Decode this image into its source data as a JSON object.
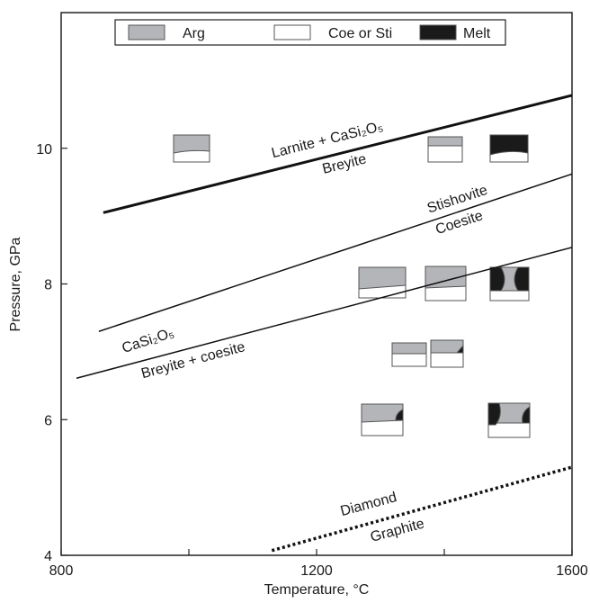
{
  "chart_data": {
    "type": "line",
    "xlabel": "Temperature, °C",
    "ylabel": "Pressure, GPa",
    "xlim": [
      800,
      1600
    ],
    "xticks": [
      800,
      1200,
      1600
    ],
    "xminorticks": [
      1000,
      1400
    ],
    "ylim": [
      4,
      12
    ],
    "yticks": [
      4,
      6,
      8,
      10
    ],
    "series": [
      {
        "x": [
          866,
          1600
        ],
        "values": [
          9.05,
          10.78
        ],
        "color": "#111111",
        "linewidth": 3,
        "style": "solid"
      },
      {
        "x": [
          859,
          1600
        ],
        "values": [
          7.3,
          9.62
        ],
        "color": "#111111",
        "linewidth": 1.5,
        "style": "solid"
      },
      {
        "x": [
          824,
          1600
        ],
        "values": [
          6.61,
          8.54
        ],
        "color": "#111111",
        "linewidth": 1.5,
        "style": "solid"
      },
      {
        "x": [
          1130,
          1600
        ],
        "values": [
          4.07,
          5.3
        ],
        "color": "#111111",
        "linewidth": 3.5,
        "style": "dotted"
      }
    ],
    "legend": [
      {
        "name": "Arg",
        "color": "#b4b5b8"
      },
      {
        "name": "Coe or Sti",
        "color": "#ffffff"
      },
      {
        "name": "Melt",
        "color": "#1a1a1a"
      }
    ],
    "annotations": [
      "Larnite + CaSi₂O₅",
      "Breyite",
      "Stishovite",
      "Coesite",
      "CaSi₂O₅",
      "Breyite + coesite",
      "Diamond",
      "Graphite"
    ]
  }
}
